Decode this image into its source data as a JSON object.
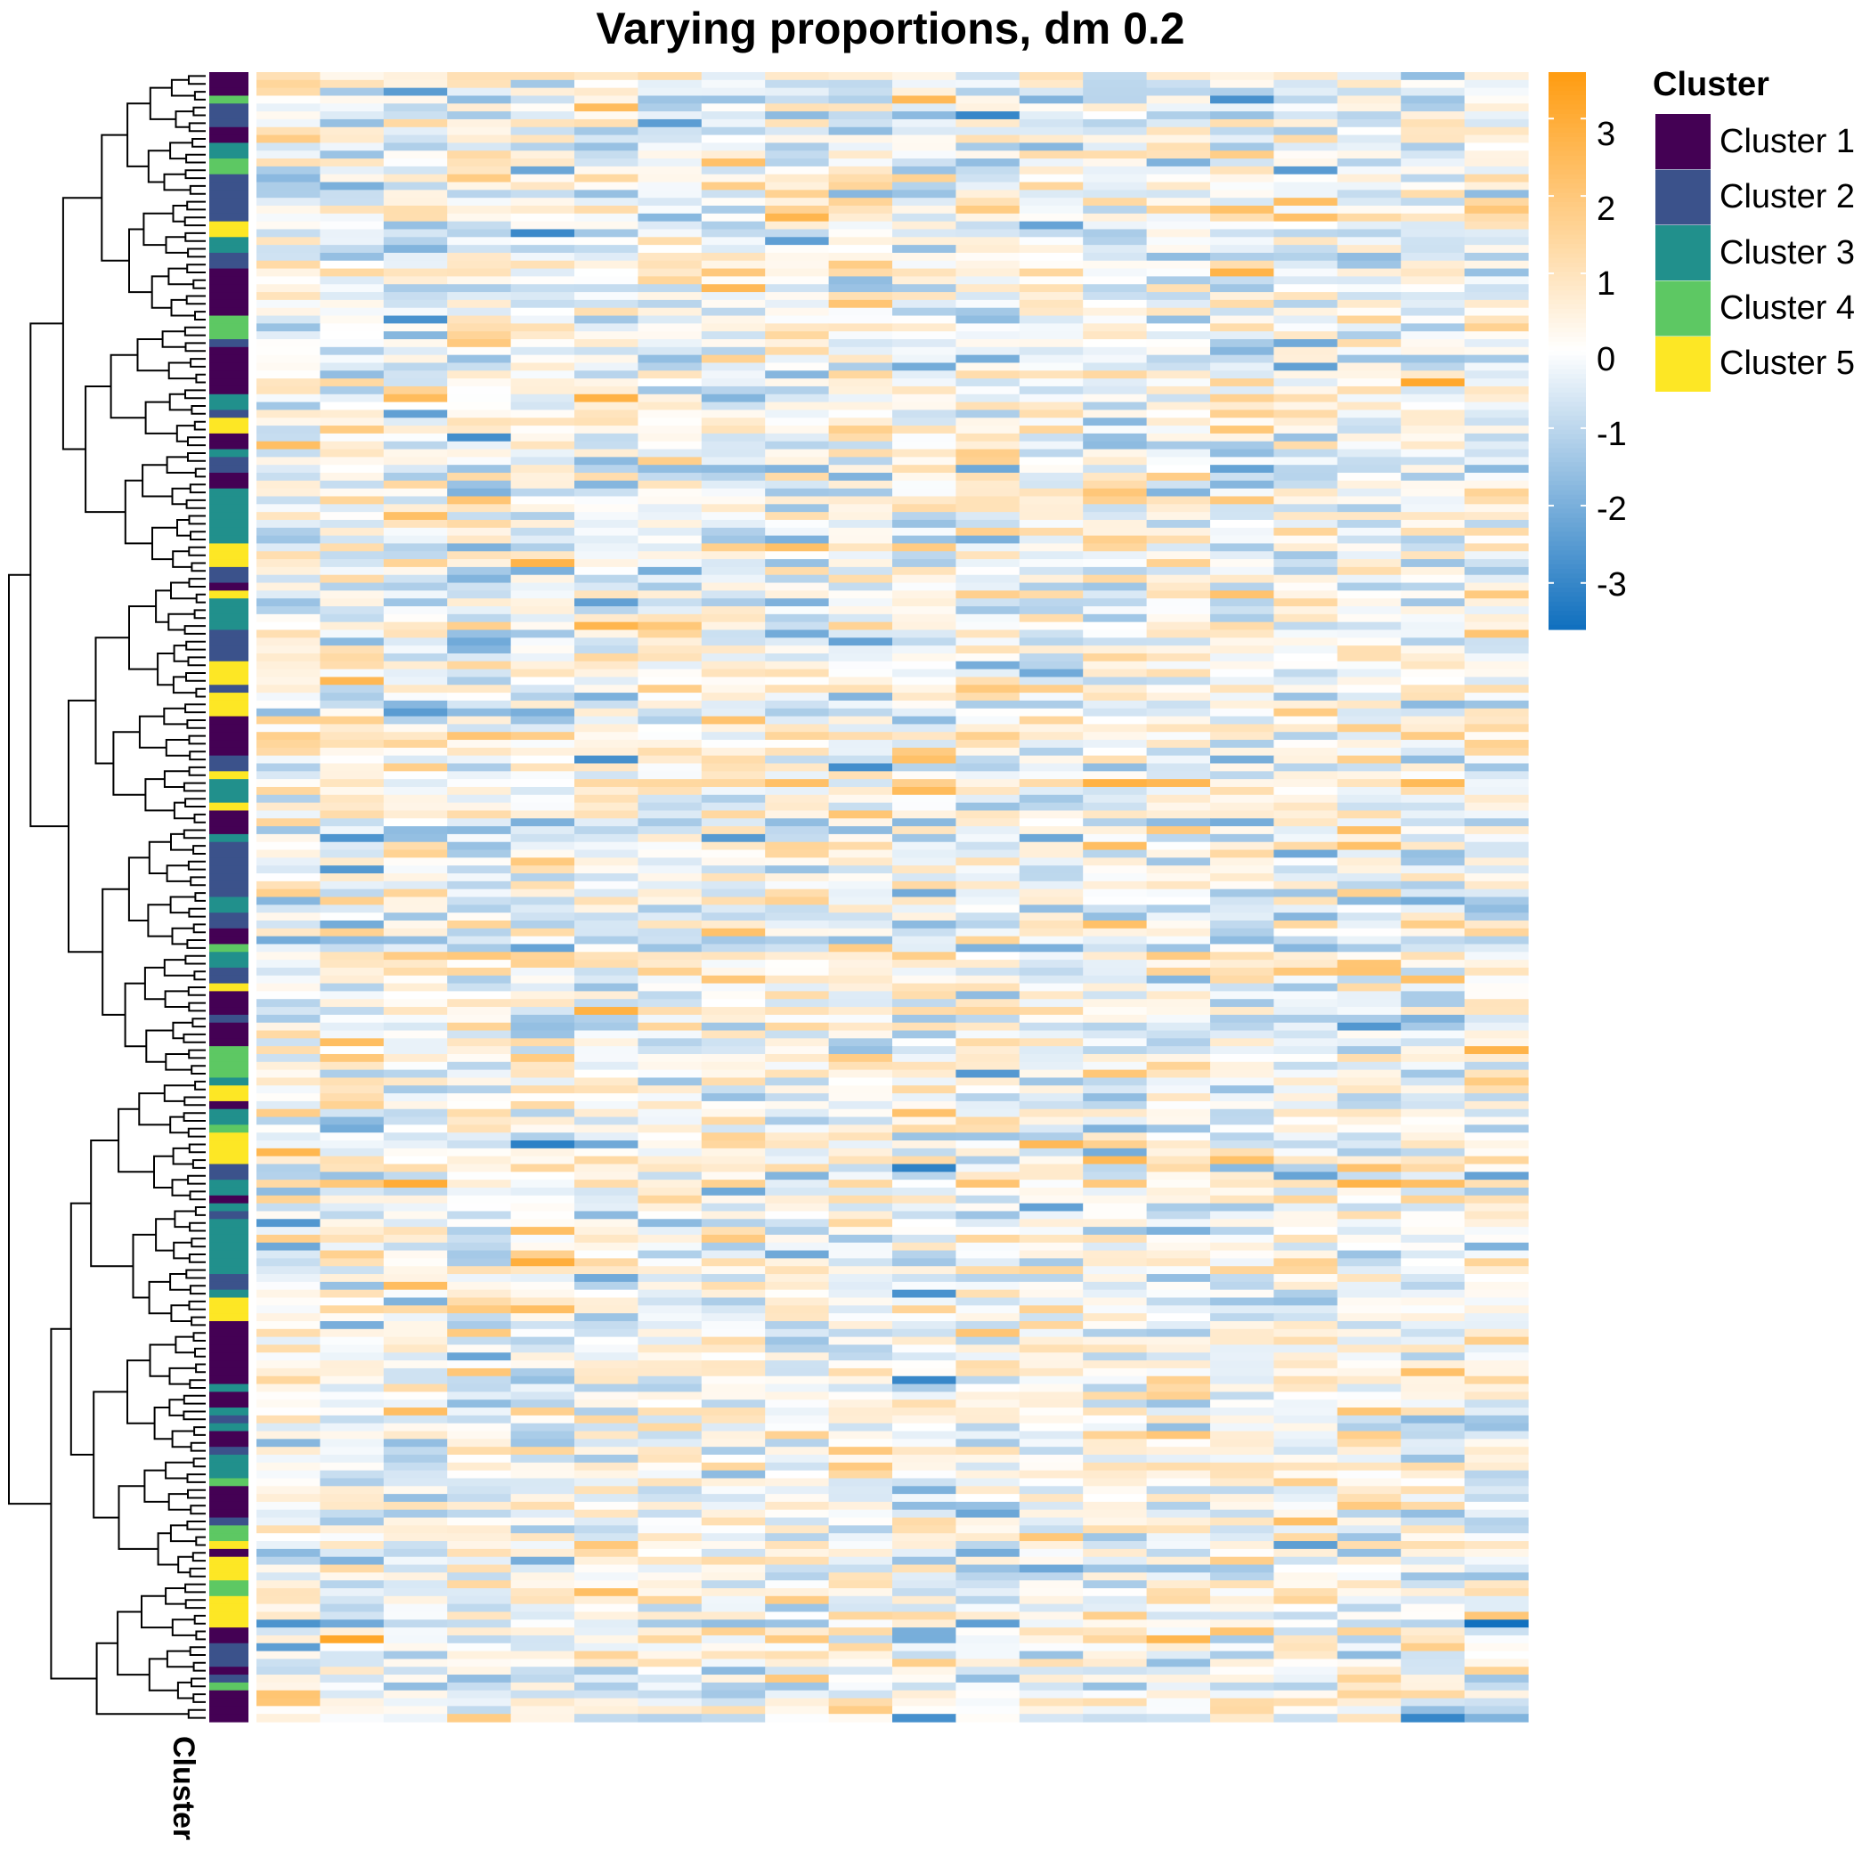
{
  "chart_data": {
    "type": "heatmap",
    "title": "Varying proportions, dm 0.2",
    "rows": 210,
    "columns": 20,
    "value_range": [
      -3.6,
      3.6
    ],
    "color_scale": {
      "low": "#0f6fbe",
      "mid": "#ffffff",
      "high": "#ff9c10"
    },
    "annotation": {
      "label": "Cluster",
      "legend_title": "Cluster",
      "categories": [
        {
          "name": "Cluster 1",
          "color": "#440154"
        },
        {
          "name": "Cluster 2",
          "color": "#3b528b"
        },
        {
          "name": "Cluster 3",
          "color": "#21908c"
        },
        {
          "name": "Cluster 4",
          "color": "#5dc863"
        },
        {
          "name": "Cluster 5",
          "color": "#fde725"
        }
      ]
    },
    "colorbar": {
      "ticks": [
        3,
        2,
        1,
        0,
        -1,
        -2,
        -3
      ]
    },
    "row_dendrogram": true
  }
}
